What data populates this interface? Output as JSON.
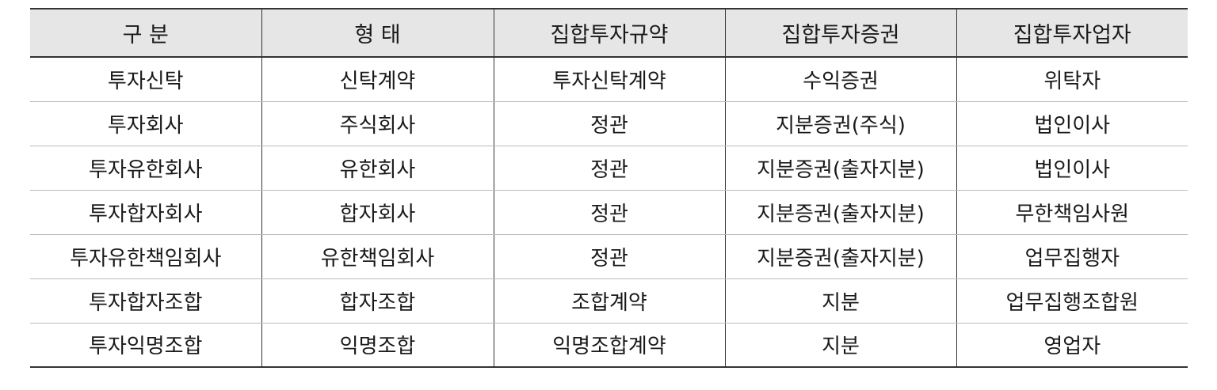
{
  "table": {
    "headers": [
      "구 분",
      "형 태",
      "집합투자규약",
      "집합투자증권",
      "집합투자업자"
    ],
    "rows": [
      [
        "투자신탁",
        "신탁계약",
        "투자신탁계약",
        "수익증권",
        "위탁자"
      ],
      [
        "투자회사",
        "주식회사",
        "정관",
        "지분증권(주식)",
        "법인이사"
      ],
      [
        "투자유한회사",
        "유한회사",
        "정관",
        "지분증권(출자지분)",
        "법인이사"
      ],
      [
        "투자합자회사",
        "합자회사",
        "정관",
        "지분증권(출자지분)",
        "무한책임사원"
      ],
      [
        "투자유한책임회사",
        "유한책임회사",
        "정관",
        "지분증권(출자지분)",
        "업무집행자"
      ],
      [
        "투자합자조합",
        "합자조합",
        "조합계약",
        "지분",
        "업무집행조합원"
      ],
      [
        "투자익명조합",
        "익명조합",
        "익명조합계약",
        "지분",
        "영업자"
      ]
    ]
  }
}
